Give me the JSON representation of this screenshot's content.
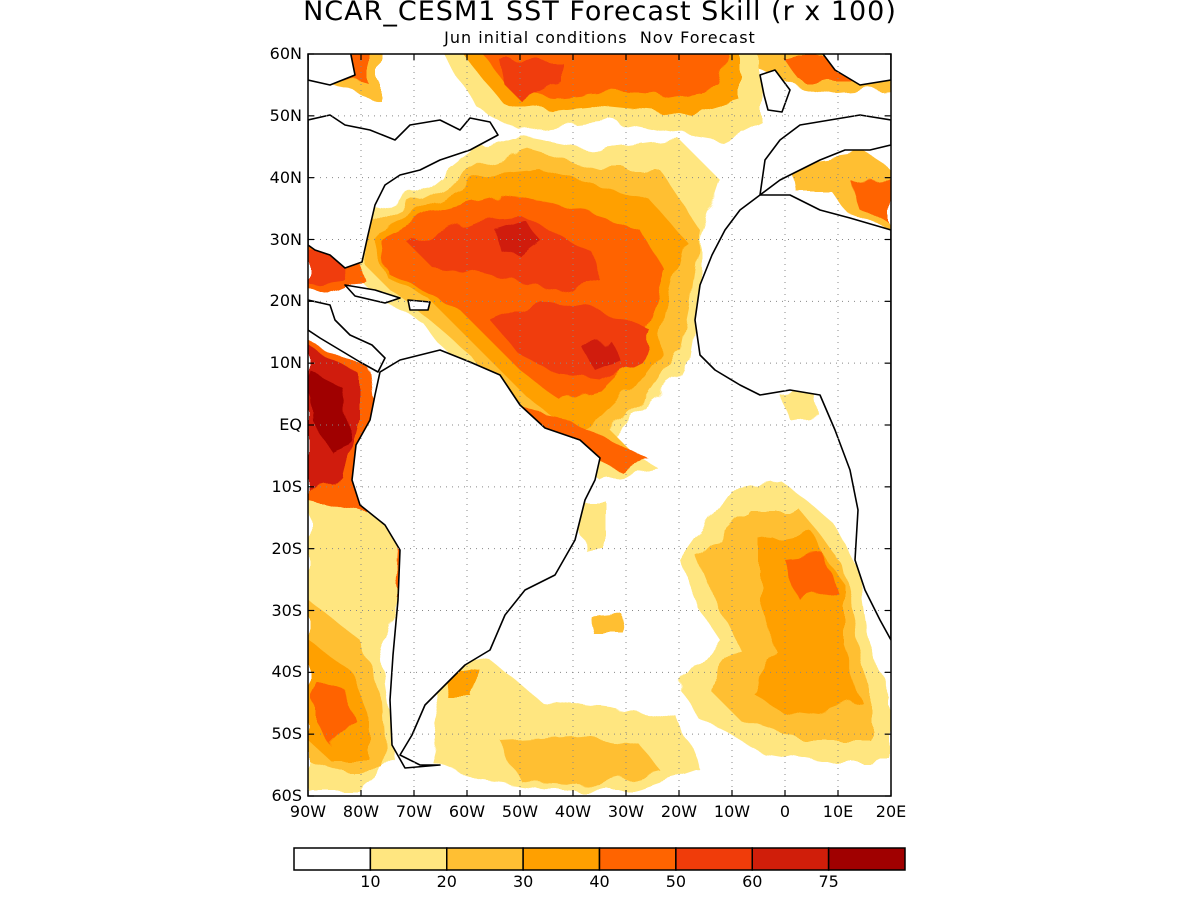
{
  "title": "NCAR_CESM1 SST Forecast Skill (r x 100)",
  "subtitle": "Jun initial conditions  Nov Forecast",
  "lat_labels": [
    "60N",
    "50N",
    "40N",
    "30N",
    "20N",
    "10N",
    "EQ",
    "10S",
    "20S",
    "30S",
    "40S",
    "50S",
    "60S"
  ],
  "lon_labels": [
    "90W",
    "80W",
    "70W",
    "60W",
    "50W",
    "40W",
    "30W",
    "20W",
    "10W",
    "0",
    "10E",
    "20E"
  ],
  "colorbar": {
    "colors": [
      "#ffffff",
      "#ffe680",
      "#ffbf33",
      "#ffa000",
      "#ff6400",
      "#f03c0a",
      "#d01e0a",
      "#a00000"
    ],
    "labels": [
      "10",
      "20",
      "30",
      "40",
      "50",
      "60",
      "75"
    ]
  },
  "map_extent": {
    "lon": [
      -90,
      20
    ],
    "lat": [
      -60,
      60
    ]
  },
  "skill_regions": [
    {
      "name": "North Atlantic subtropics",
      "level": 4
    },
    {
      "name": "Tropical North Atlantic",
      "level": 5
    },
    {
      "name": "Eastern Tropical Pacific",
      "level": 7
    },
    {
      "name": "Benguela / SE Atlantic",
      "level": 3
    },
    {
      "name": "South Atlantic mid-latitudes",
      "level": 2
    }
  ]
}
